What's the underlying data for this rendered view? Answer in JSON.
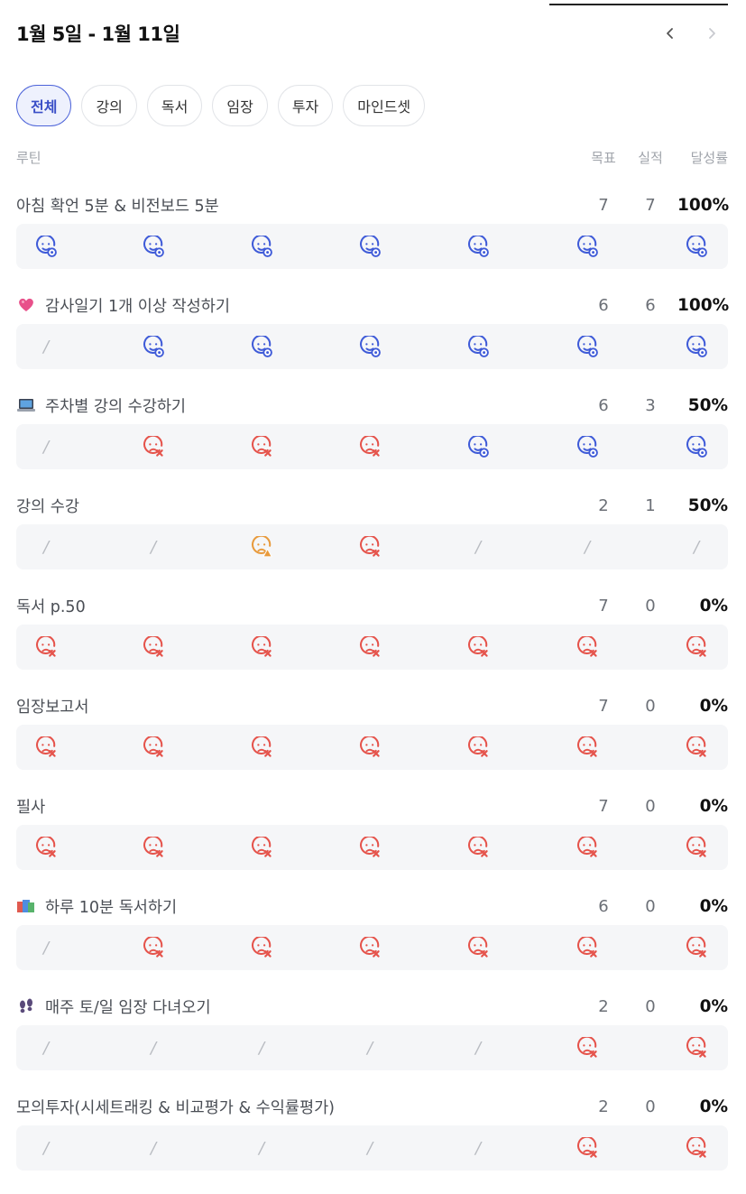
{
  "header": {
    "title": "1월 5일 - 1월 11일",
    "prev_icon": "chevron-left-icon",
    "next_icon": "chevron-right-icon"
  },
  "tabs": [
    {
      "label": "전체",
      "active": true
    },
    {
      "label": "강의",
      "active": false
    },
    {
      "label": "독서",
      "active": false
    },
    {
      "label": "임장",
      "active": false
    },
    {
      "label": "투자",
      "active": false
    },
    {
      "label": "마인드셋",
      "active": false
    }
  ],
  "columns": {
    "routine": "루틴",
    "goal": "목표",
    "actual": "실적",
    "rate": "달성률"
  },
  "colors": {
    "done": "#3f5bd8",
    "missed": "#e5534b",
    "partial": "#e89a3c",
    "slash": "#b9bcc2",
    "active_tab": "#4c63d9"
  },
  "status_legend": {
    "done": "smile-check-icon",
    "missed": "sad-x-icon",
    "partial": "sad-warning-icon",
    "none": "slash"
  },
  "routines": [
    {
      "name": "아침 확언 5분 & 비전보드 5분",
      "emoji": "",
      "goal": "7",
      "actual": "7",
      "rate": "100%",
      "days": [
        "done",
        "done",
        "done",
        "done",
        "done",
        "done",
        "done"
      ]
    },
    {
      "name": "감사일기 1개 이상 작성하기",
      "emoji": "heart-emoji",
      "goal": "6",
      "actual": "6",
      "rate": "100%",
      "days": [
        "none",
        "done",
        "done",
        "done",
        "done",
        "done",
        "done"
      ]
    },
    {
      "name": "주차별 강의 수강하기",
      "emoji": "laptop-emoji",
      "goal": "6",
      "actual": "3",
      "rate": "50%",
      "days": [
        "none",
        "missed",
        "missed",
        "missed",
        "done",
        "done",
        "done"
      ]
    },
    {
      "name": "강의 수강",
      "emoji": "",
      "goal": "2",
      "actual": "1",
      "rate": "50%",
      "days": [
        "none",
        "none",
        "partial",
        "missed",
        "none",
        "none",
        "none"
      ]
    },
    {
      "name": "독서 p.50",
      "emoji": "",
      "goal": "7",
      "actual": "0",
      "rate": "0%",
      "days": [
        "missed",
        "missed",
        "missed",
        "missed",
        "missed",
        "missed",
        "missed"
      ]
    },
    {
      "name": "임장보고서",
      "emoji": "",
      "goal": "7",
      "actual": "0",
      "rate": "0%",
      "days": [
        "missed",
        "missed",
        "missed",
        "missed",
        "missed",
        "missed",
        "missed"
      ]
    },
    {
      "name": "필사",
      "emoji": "",
      "goal": "7",
      "actual": "0",
      "rate": "0%",
      "days": [
        "missed",
        "missed",
        "missed",
        "missed",
        "missed",
        "missed",
        "missed"
      ]
    },
    {
      "name": "하루 10분 독서하기",
      "emoji": "books-emoji",
      "goal": "6",
      "actual": "0",
      "rate": "0%",
      "days": [
        "none",
        "missed",
        "missed",
        "missed",
        "missed",
        "missed",
        "missed"
      ]
    },
    {
      "name": "매주 토/일 임장 다녀오기",
      "emoji": "footprints-emoji",
      "goal": "2",
      "actual": "0",
      "rate": "0%",
      "days": [
        "none",
        "none",
        "none",
        "none",
        "none",
        "missed",
        "missed"
      ]
    },
    {
      "name": "모의투자(시세트래킹 & 비교평가 & 수익률평가)",
      "emoji": "",
      "goal": "2",
      "actual": "0",
      "rate": "0%",
      "days": [
        "none",
        "none",
        "none",
        "none",
        "none",
        "missed",
        "missed"
      ]
    }
  ]
}
